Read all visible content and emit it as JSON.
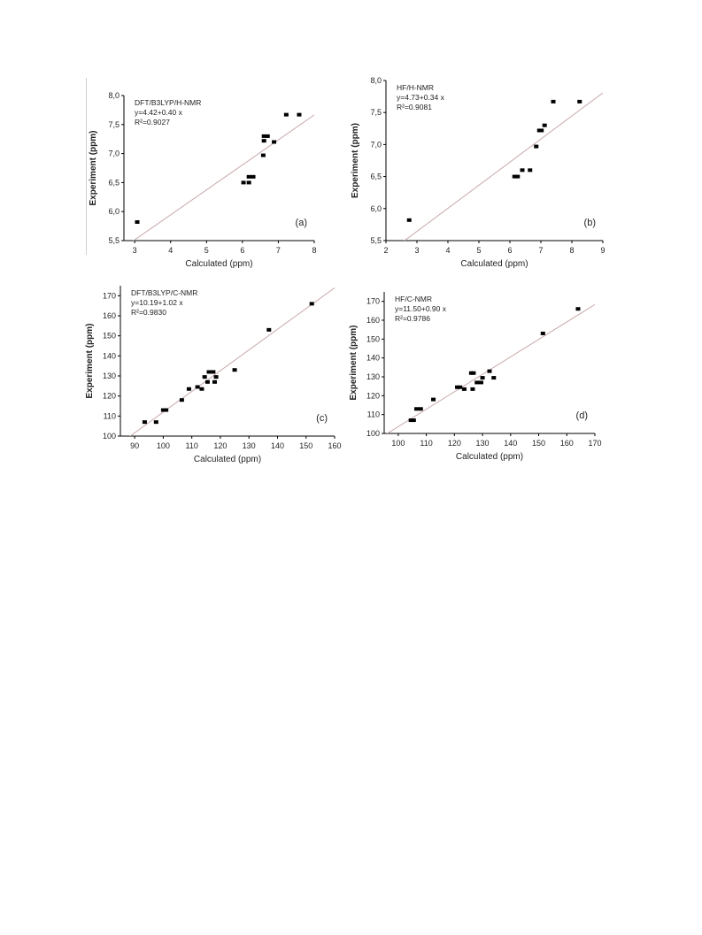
{
  "figure": {
    "panels": [
      {
        "id": "a",
        "panel_label": "(a)",
        "annotation": {
          "title": "DFT/B3LYP/H-NMR",
          "equation": "y=4.42+0.40 x",
          "r2": "R²=0.9027"
        },
        "xlabel": "Calculated (ppm)",
        "ylabel": "Experiment (ppm)",
        "x_ticks": [
          "3",
          "4",
          "5",
          "6",
          "7",
          "8"
        ],
        "y_ticks": [
          "5,5",
          "6,0",
          "6,5",
          "7,0",
          "7,5",
          "8,0"
        ]
      },
      {
        "id": "b",
        "panel_label": "(b)",
        "annotation": {
          "title": "HF/H-NMR",
          "equation": "y=4.73+0.34 x",
          "r2": "R²=0.9081"
        },
        "xlabel": "Calculated (ppm)",
        "ylabel": "Experiment (ppm)",
        "x_ticks": [
          "2",
          "3",
          "4",
          "5",
          "6",
          "7",
          "8",
          "9"
        ],
        "y_ticks": [
          "5,5",
          "6,0",
          "6,5",
          "7,0",
          "7,5",
          "8,0"
        ]
      },
      {
        "id": "c",
        "panel_label": "(c)",
        "annotation": {
          "title": "DFT/B3LYP/C-NMR",
          "equation": "y=10.19+1.02 x",
          "r2": "R²=0.9830"
        },
        "xlabel": "Calculated (ppm)",
        "ylabel": "Experiment (ppm)",
        "x_ticks": [
          "90",
          "100",
          "110",
          "120",
          "130",
          "140",
          "150",
          "160"
        ],
        "y_ticks": [
          "100",
          "110",
          "120",
          "130",
          "140",
          "150",
          "160",
          "170"
        ]
      },
      {
        "id": "d",
        "panel_label": "(d)",
        "annotation": {
          "title": "HF/C-NMR",
          "equation": "y=11.50+0.90 x",
          "r2": "R²=0.9786"
        },
        "xlabel": "Calculated (ppm)",
        "ylabel": "Experiment (ppm)",
        "x_ticks": [
          "100",
          "110",
          "120",
          "130",
          "140",
          "150",
          "160",
          "170"
        ],
        "y_ticks": [
          "100",
          "110",
          "120",
          "130",
          "140",
          "150",
          "160",
          "170"
        ]
      }
    ]
  },
  "chart_data": [
    {
      "type": "scatter",
      "title": "DFT/B3LYP/H-NMR",
      "xlabel": "Calculated (ppm)",
      "ylabel": "Experiment (ppm)",
      "xlim": [
        2.7,
        8
      ],
      "ylim": [
        5.5,
        8.0
      ],
      "grid": false,
      "fit": {
        "intercept": 4.42,
        "slope": 0.4,
        "r2": 0.9027
      },
      "points": [
        {
          "x": 3.07,
          "y": 5.82
        },
        {
          "x": 6.03,
          "y": 6.5
        },
        {
          "x": 6.18,
          "y": 6.5
        },
        {
          "x": 6.18,
          "y": 6.6
        },
        {
          "x": 6.3,
          "y": 6.6
        },
        {
          "x": 6.58,
          "y": 6.97
        },
        {
          "x": 6.6,
          "y": 7.22
        },
        {
          "x": 6.6,
          "y": 7.3
        },
        {
          "x": 6.7,
          "y": 7.3
        },
        {
          "x": 6.88,
          "y": 7.2
        },
        {
          "x": 7.22,
          "y": 7.67
        },
        {
          "x": 7.58,
          "y": 7.67
        }
      ]
    },
    {
      "type": "scatter",
      "title": "HF/H-NMR",
      "xlabel": "Calculated (ppm)",
      "ylabel": "Experiment (ppm)",
      "xlim": [
        2,
        9
      ],
      "ylim": [
        5.5,
        8.0
      ],
      "grid": false,
      "fit": {
        "intercept": 4.73,
        "slope": 0.34,
        "r2": 0.9081
      },
      "points": [
        {
          "x": 2.75,
          "y": 5.82
        },
        {
          "x": 6.15,
          "y": 6.5
        },
        {
          "x": 6.25,
          "y": 6.5
        },
        {
          "x": 6.4,
          "y": 6.6
        },
        {
          "x": 6.65,
          "y": 6.6
        },
        {
          "x": 6.85,
          "y": 6.97
        },
        {
          "x": 6.95,
          "y": 7.22
        },
        {
          "x": 7.02,
          "y": 7.22
        },
        {
          "x": 7.12,
          "y": 7.3
        },
        {
          "x": 7.4,
          "y": 7.67
        },
        {
          "x": 8.25,
          "y": 7.67
        }
      ]
    },
    {
      "type": "scatter",
      "title": "DFT/B3LYP/C-NMR",
      "xlabel": "Calculated (ppm)",
      "ylabel": "Experiment (ppm)",
      "xlim": [
        85,
        160
      ],
      "ylim": [
        100,
        175
      ],
      "grid": false,
      "fit": {
        "intercept": 10.19,
        "slope": 1.02,
        "r2": 0.983
      },
      "points": [
        {
          "x": 93.5,
          "y": 107
        },
        {
          "x": 97.5,
          "y": 107
        },
        {
          "x": 100,
          "y": 113
        },
        {
          "x": 101,
          "y": 113
        },
        {
          "x": 106.5,
          "y": 118
        },
        {
          "x": 109,
          "y": 123.5
        },
        {
          "x": 112,
          "y": 124.5
        },
        {
          "x": 113.5,
          "y": 123.5
        },
        {
          "x": 114.5,
          "y": 129.5
        },
        {
          "x": 115.5,
          "y": 127
        },
        {
          "x": 116,
          "y": 132
        },
        {
          "x": 117.5,
          "y": 132
        },
        {
          "x": 118,
          "y": 127
        },
        {
          "x": 118.5,
          "y": 129.5
        },
        {
          "x": 125,
          "y": 133
        },
        {
          "x": 137,
          "y": 153
        },
        {
          "x": 152,
          "y": 166
        }
      ]
    },
    {
      "type": "scatter",
      "title": "HF/C-NMR",
      "xlabel": "Calculated (ppm)",
      "ylabel": "Experiment (ppm)",
      "xlim": [
        95,
        170
      ],
      "ylim": [
        100,
        175
      ],
      "grid": false,
      "fit": {
        "intercept": 11.5,
        "slope": 0.9,
        "r2": 0.9786
      },
      "points": [
        {
          "x": 104.5,
          "y": 107
        },
        {
          "x": 105.5,
          "y": 107
        },
        {
          "x": 106.5,
          "y": 113
        },
        {
          "x": 108,
          "y": 113
        },
        {
          "x": 112.5,
          "y": 118
        },
        {
          "x": 121,
          "y": 124.5
        },
        {
          "x": 122,
          "y": 124.5
        },
        {
          "x": 123.5,
          "y": 123.5
        },
        {
          "x": 126,
          "y": 132
        },
        {
          "x": 126.5,
          "y": 123.5
        },
        {
          "x": 126.8,
          "y": 132
        },
        {
          "x": 128,
          "y": 127
        },
        {
          "x": 129.5,
          "y": 127
        },
        {
          "x": 130,
          "y": 129.5
        },
        {
          "x": 132.5,
          "y": 133
        },
        {
          "x": 134,
          "y": 129.5
        },
        {
          "x": 151.5,
          "y": 153
        },
        {
          "x": 164,
          "y": 166
        }
      ]
    }
  ]
}
